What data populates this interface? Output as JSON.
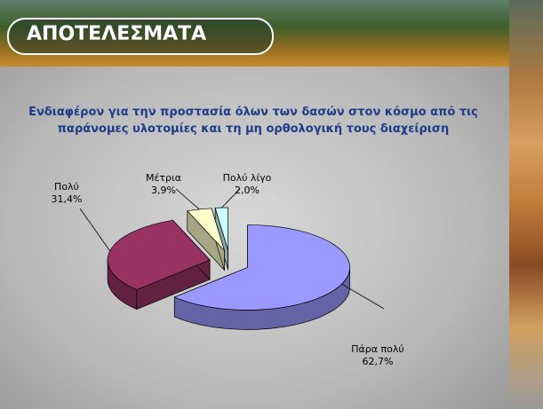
{
  "slide": {
    "heading": "ΑΠΟΤΕΛΕΣΜΑΤΑ"
  },
  "chart_data": {
    "type": "pie",
    "title": "Ενδιαφέρον για την προστασία όλων των δασών στον κόσμο από τις παράνομες υλοτομίες και τη μη ορθολογική τους διαχείριση",
    "categories": [
      "Πάρα πολύ",
      "Πολύ",
      "Μέτρια",
      "Πολύ λίγο"
    ],
    "values": [
      62.7,
      31.4,
      3.9,
      2.0
    ],
    "value_labels": [
      "62,7%",
      "31,4%",
      "3,9%",
      "2,0%"
    ],
    "colors": [
      "#9999ff",
      "#993366",
      "#ffffcc",
      "#ccffff"
    ]
  }
}
